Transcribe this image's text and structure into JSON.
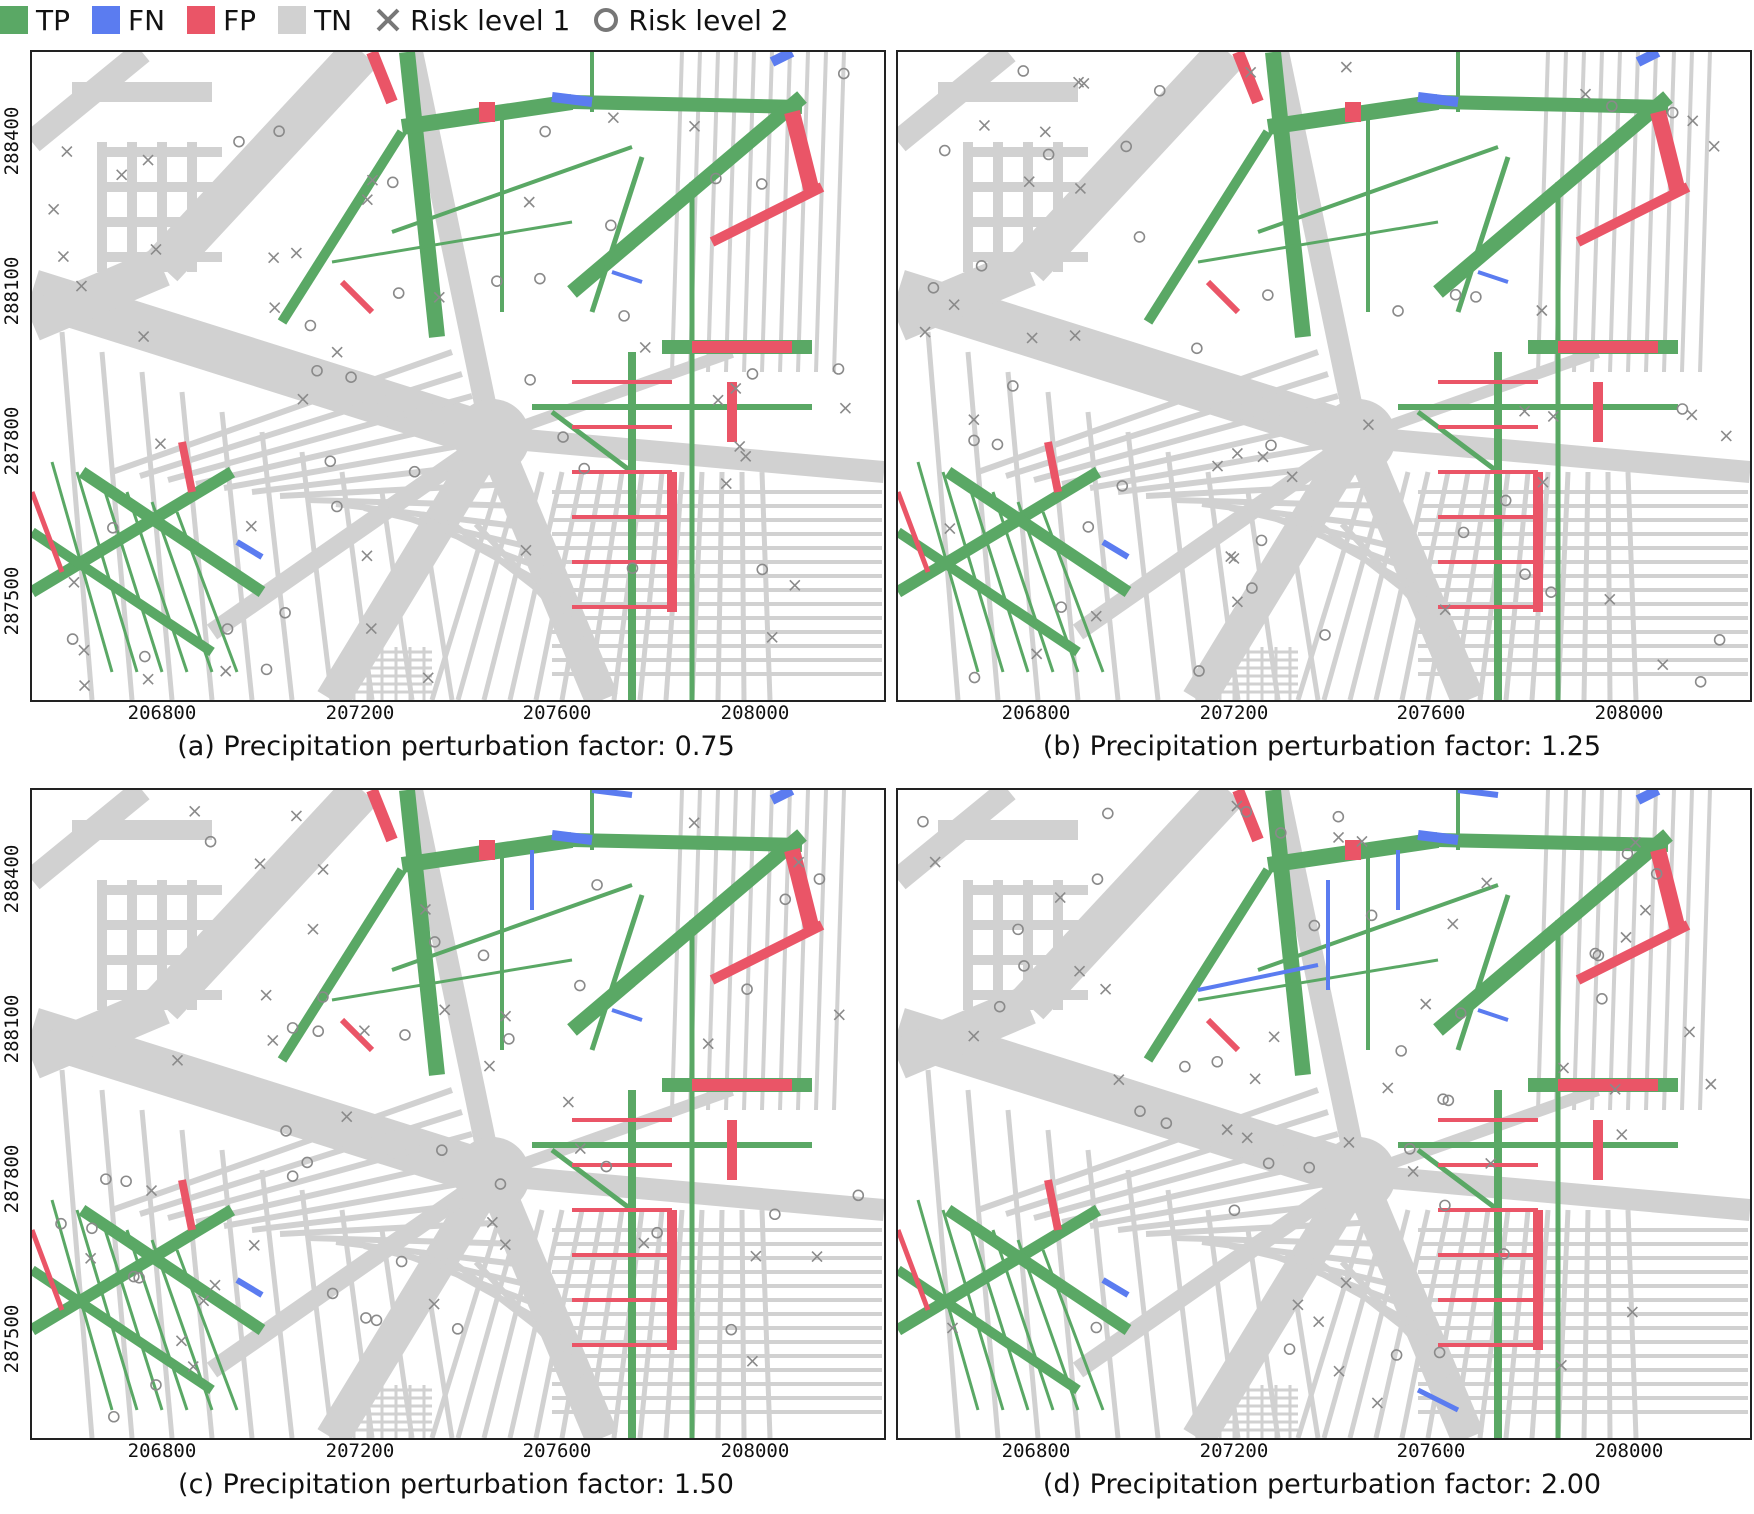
{
  "legend": [
    {
      "label": "TP",
      "type": "square",
      "color": "#5aa865"
    },
    {
      "label": "FN",
      "type": "square",
      "color": "#5b7cf0"
    },
    {
      "label": "FP",
      "type": "square",
      "color": "#ea5567"
    },
    {
      "label": "TN",
      "type": "square",
      "color": "#d1d1d1"
    },
    {
      "label": "Risk level 1",
      "type": "x-marker",
      "color": "#777777"
    },
    {
      "label": "Risk level 2",
      "type": "o-marker",
      "color": "#777777"
    }
  ],
  "colors": {
    "tp": "#5aa865",
    "fn": "#5b7cf0",
    "fp": "#ea5567",
    "tn": "#d1d1d1",
    "marker": "#8a8a8a"
  },
  "x_ticks": [
    "206800",
    "207200",
    "207600",
    "208000"
  ],
  "y_ticks": [
    "288400",
    "288100",
    "287800",
    "287500"
  ],
  "panels": [
    {
      "id": "a",
      "caption": "(a) Precipitation perturbation factor: 0.75"
    },
    {
      "id": "b",
      "caption": "(b) Precipitation perturbation factor: 1.25"
    },
    {
      "id": "c",
      "caption": "(c) Precipitation perturbation factor: 1.50"
    },
    {
      "id": "d",
      "caption": "(d) Precipitation perturbation factor: 2.00"
    }
  ]
}
